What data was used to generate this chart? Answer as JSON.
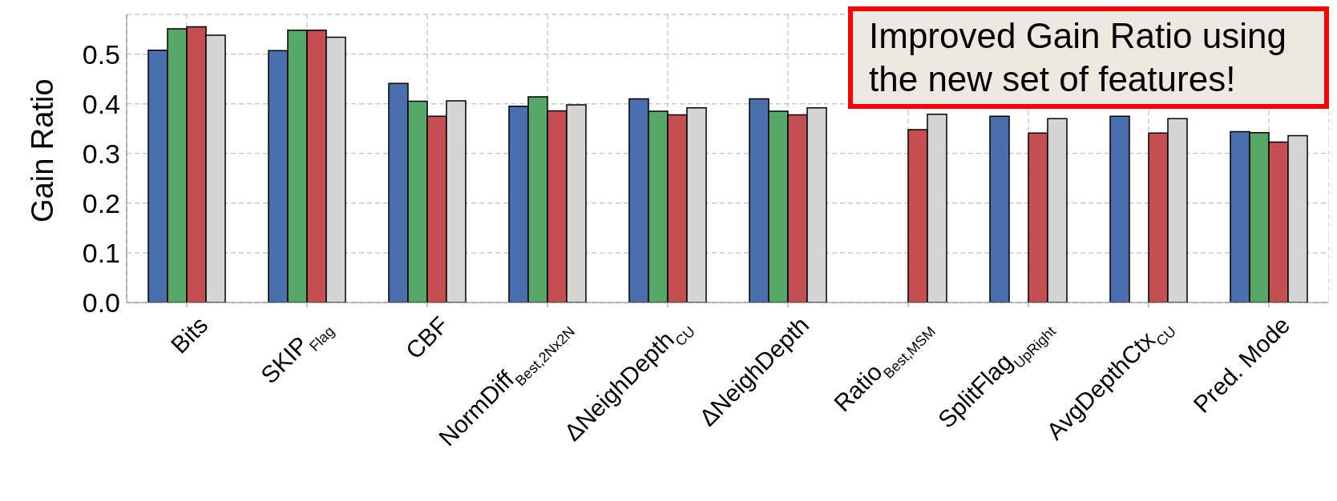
{
  "chart_data": {
    "type": "bar",
    "ylabel": "Gain Ratio",
    "categories": [
      "Bits",
      "SKIP$_{Flag}$",
      "CBF",
      "NormDiff$_{Best,2Nx2N}$",
      "ΔNeighDepth$_{CU}$",
      "ΔNeighDepth",
      "Ratio$_{Best,MSM}$",
      "SplitFlag$_{UpRight}$",
      "AvgDepthCtx$_{CU}$",
      "Pred. Mode"
    ],
    "series": [
      {
        "color": "#4a6fae",
        "values": [
          0.508,
          0.507,
          0.441,
          0.395,
          0.41,
          0.41,
          null,
          0.375,
          0.375,
          0.344
        ]
      },
      {
        "color": "#55a868",
        "values": [
          0.551,
          0.548,
          0.405,
          0.414,
          0.385,
          0.385,
          null,
          null,
          null,
          0.342
        ]
      },
      {
        "color": "#c44e52",
        "values": [
          0.555,
          0.548,
          0.375,
          0.386,
          0.378,
          0.378,
          0.348,
          0.341,
          0.341,
          0.323
        ]
      },
      {
        "color": "#d4d4d4",
        "values": [
          0.538,
          0.534,
          0.406,
          0.398,
          0.392,
          0.392,
          0.379,
          0.37,
          0.37,
          0.336
        ]
      }
    ],
    "ylim": [
      0,
      0.58
    ],
    "yticks": [
      {
        "value": 0,
        "label": "0.0"
      },
      {
        "value": 0.1,
        "label": "0.1"
      },
      {
        "value": 0.2,
        "label": "0.2"
      },
      {
        "value": 0.3,
        "label": "0.3"
      },
      {
        "value": 0.4,
        "label": "0.4"
      },
      {
        "value": 0.5,
        "label": "0.5"
      }
    ],
    "grid": true,
    "legend": false,
    "annotations": [
      "Improved Gain Ratio using the new set of features!"
    ]
  }
}
